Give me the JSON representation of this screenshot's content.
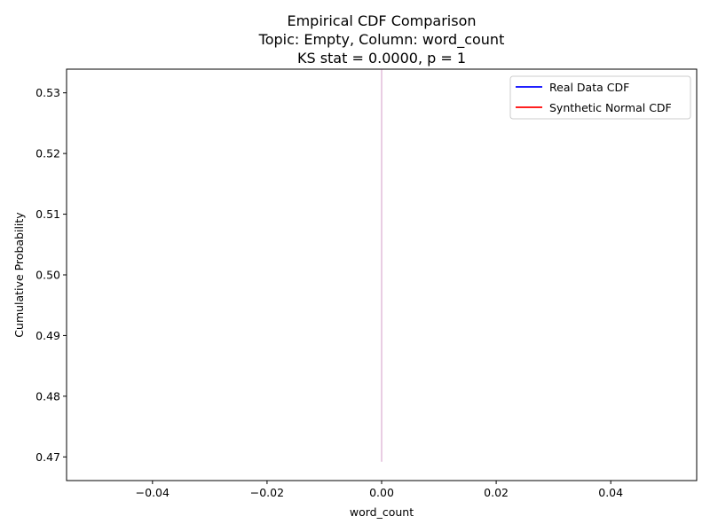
{
  "chart_data": {
    "type": "line",
    "title_lines": [
      "Empirical CDF Comparison",
      "Topic: Empty, Column: word_count",
      "KS stat = 0.0000, p = 1"
    ],
    "xlabel": "word_count",
    "ylabel": "Cumulative Probability",
    "xlim": [
      -0.055,
      0.055
    ],
    "ylim": [
      0.4661,
      0.5339
    ],
    "xticks": [
      -0.04,
      -0.02,
      0.0,
      0.02,
      0.04
    ],
    "xtick_labels": [
      "−0.04",
      "−0.02",
      "0.00",
      "0.02",
      "0.04"
    ],
    "yticks": [
      0.47,
      0.48,
      0.49,
      0.5,
      0.51,
      0.52,
      0.53
    ],
    "ytick_labels": [
      "0.47",
      "0.48",
      "0.49",
      "0.50",
      "0.51",
      "0.52",
      "0.53"
    ],
    "grid": false,
    "legend_position": "top-right",
    "series": [
      {
        "name": "Real Data CDF",
        "color": "#0000ff",
        "x": [
          0,
          0
        ],
        "y": [
          0.4692,
          0.5339
        ]
      },
      {
        "name": "Synthetic Normal CDF",
        "color": "#ff0000",
        "x": [
          0,
          0
        ],
        "y": [
          0.4692,
          0.5339
        ]
      }
    ]
  }
}
